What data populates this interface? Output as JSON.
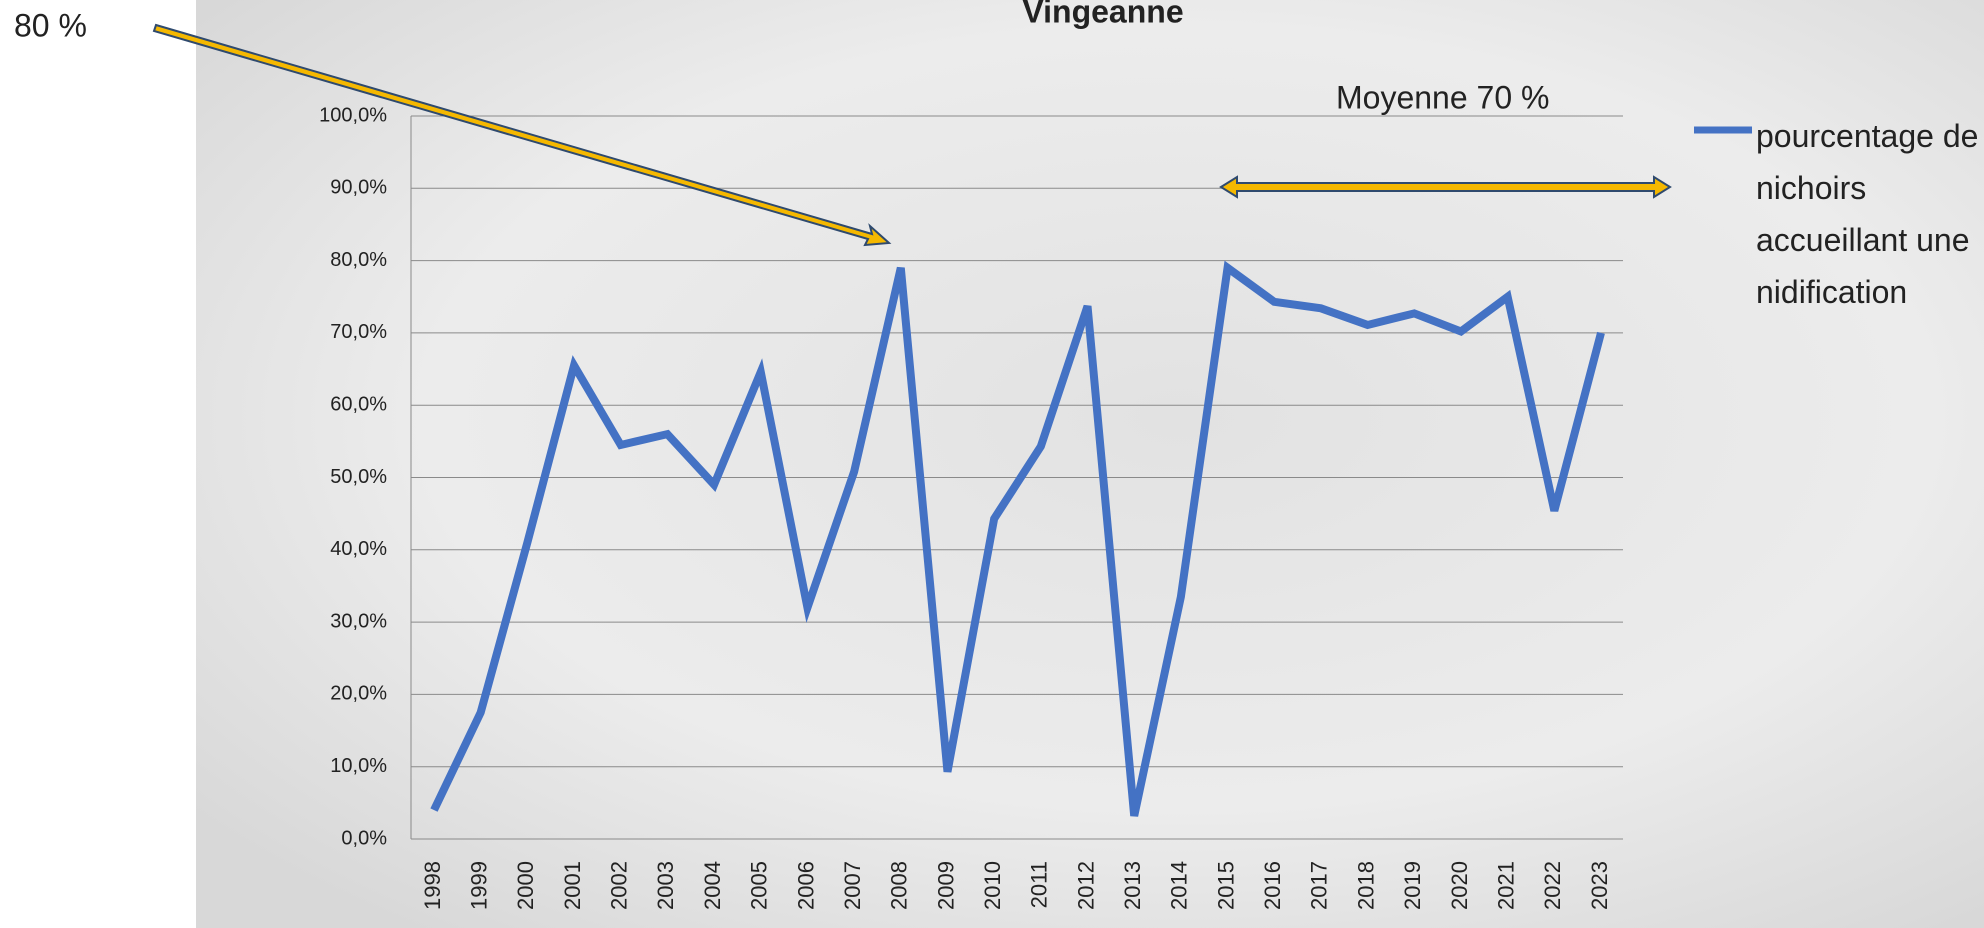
{
  "chart_data": {
    "type": "line",
    "title": "Vingeanne",
    "categories": [
      "1998",
      "1999",
      "2000",
      "2001",
      "2002",
      "2003",
      "2004",
      "2005",
      "2006",
      "2007",
      "2008",
      "2009",
      "2010",
      "2011",
      "2012",
      "2013",
      "2014",
      "2015",
      "2016",
      "2017",
      "2018",
      "2019",
      "2020",
      "2021",
      "2022",
      "2023"
    ],
    "series": [
      {
        "name": "pourcentage de nichoirs accueillant une nidification",
        "color": "#4472c4",
        "values": [
          4.0,
          17.5,
          41,
          65.5,
          54.5,
          56,
          49,
          64.6,
          32,
          50.8,
          79,
          9.3,
          44.3,
          54.3,
          73.7,
          3.2,
          33.5,
          79,
          74.3,
          73.4,
          71.1,
          72.7,
          70.2,
          75,
          45.4,
          70
        ]
      }
    ],
    "ylim": [
      0,
      100
    ],
    "yticks": [
      {
        "value": 0,
        "label": "0,0%"
      },
      {
        "value": 10,
        "label": "10,0%"
      },
      {
        "value": 20,
        "label": "20,0%"
      },
      {
        "value": 30,
        "label": "30,0%"
      },
      {
        "value": 40,
        "label": "40,0%"
      },
      {
        "value": 50,
        "label": "50,0%"
      },
      {
        "value": 60,
        "label": "60,0%"
      },
      {
        "value": 70,
        "label": "70,0%"
      },
      {
        "value": 80,
        "label": "80,0%"
      },
      {
        "value": 90,
        "label": "90,0%"
      },
      {
        "value": 100,
        "label": "100,0%"
      }
    ],
    "grid": true,
    "legend": "right",
    "annotations": [
      "80 %",
      "Moyenne 70 %"
    ]
  }
}
